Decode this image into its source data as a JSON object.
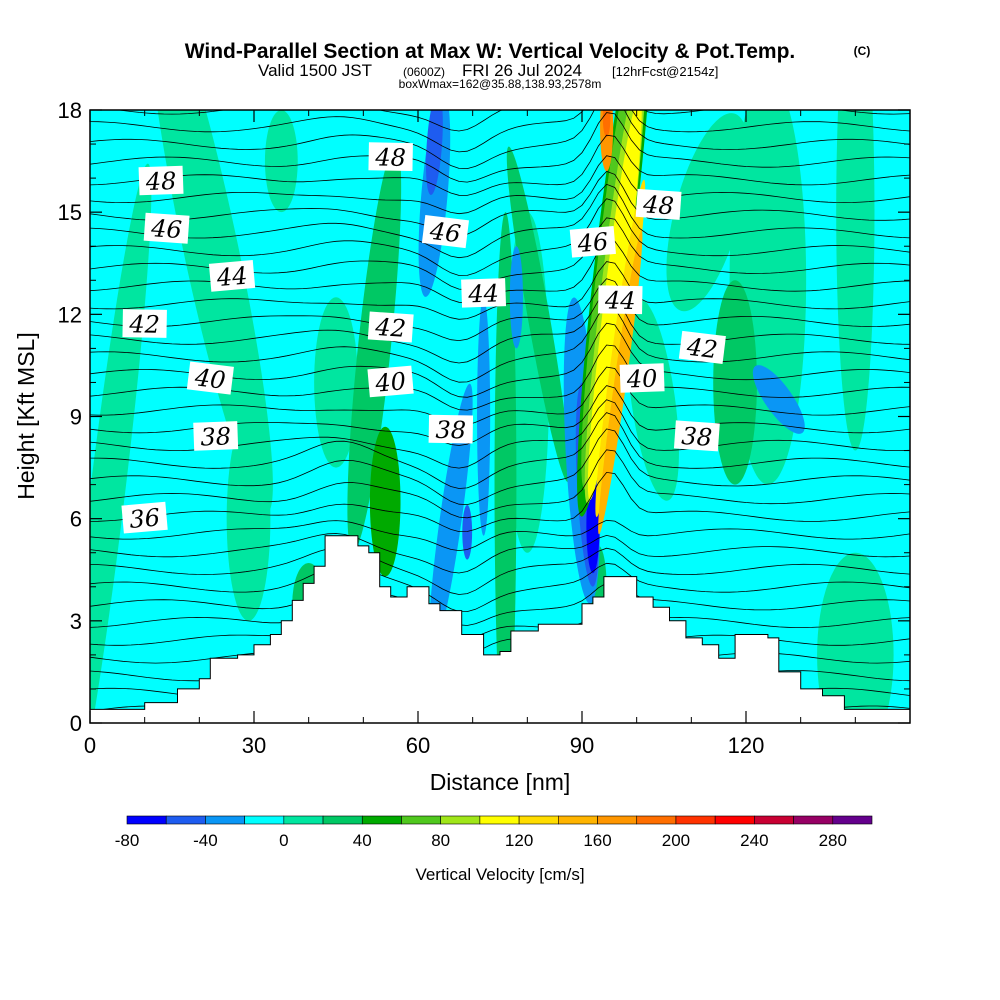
{
  "title": {
    "main": "Wind-Parallel Section at Max W: Vertical Velocity & Pot.Temp.",
    "copyright": "(C)",
    "valid_prefix": "Valid 1500 JST",
    "utc": "(0600Z)",
    "valid_date": "FRI 26 Jul 2024",
    "fcst": "[12hrFcst@2154z]",
    "box": "boxWmax=162@35.88,138.93,2578m"
  },
  "chart_data": {
    "type": "heatmap",
    "xlabel": "Distance [nm]",
    "ylabel": "Height [Kft MSL]",
    "xlim": [
      0,
      150
    ],
    "ylim": [
      0,
      18
    ],
    "x_ticks": [
      0,
      30,
      60,
      90,
      120
    ],
    "y_ticks": [
      0,
      3,
      6,
      9,
      12,
      15,
      18
    ],
    "colorbar": {
      "label": "Vertical Velocity [cm/s]",
      "ticks": [
        -80,
        -40,
        0,
        40,
        80,
        120,
        160,
        200,
        240,
        280
      ],
      "levels": [
        -80,
        -60,
        -40,
        -20,
        0,
        20,
        40,
        60,
        80,
        100,
        120,
        140,
        160,
        180,
        200,
        220,
        240,
        260,
        280,
        300
      ],
      "colors": [
        "#0000ff",
        "#1e5cf0",
        "#0a96f5",
        "#00ffff",
        "#00e6a0",
        "#00c864",
        "#00aa00",
        "#50c81e",
        "#a0e619",
        "#ffff00",
        "#ffdc00",
        "#ffb400",
        "#ff9600",
        "#ff6e00",
        "#ff3200",
        "#ff0000",
        "#c80032",
        "#960064",
        "#64008c"
      ]
    },
    "theta_contour_labels": [
      {
        "value": "36",
        "x": 10,
        "y": 6.0
      },
      {
        "value": "38",
        "x": 23,
        "y": 8.4
      },
      {
        "value": "38",
        "x": 66,
        "y": 8.6
      },
      {
        "value": "38",
        "x": 111,
        "y": 8.4
      },
      {
        "value": "40",
        "x": 22,
        "y": 10.1
      },
      {
        "value": "40",
        "x": 55,
        "y": 10.0
      },
      {
        "value": "40",
        "x": 101,
        "y": 10.1
      },
      {
        "value": "42",
        "x": 10,
        "y": 11.7
      },
      {
        "value": "42",
        "x": 55,
        "y": 11.6
      },
      {
        "value": "42",
        "x": 112,
        "y": 11.0
      },
      {
        "value": "44",
        "x": 26,
        "y": 13.1
      },
      {
        "value": "44",
        "x": 72,
        "y": 12.6
      },
      {
        "value": "44",
        "x": 97,
        "y": 12.4
      },
      {
        "value": "46",
        "x": 14,
        "y": 14.5
      },
      {
        "value": "46",
        "x": 65,
        "y": 14.4
      },
      {
        "value": "46",
        "x": 92,
        "y": 14.1
      },
      {
        "value": "48",
        "x": 13,
        "y": 15.9
      },
      {
        "value": "48",
        "x": 55,
        "y": 16.6
      },
      {
        "value": "48",
        "x": 104,
        "y": 15.2
      }
    ],
    "terrain_kft": [
      [
        0,
        0.4
      ],
      [
        10,
        0.6
      ],
      [
        16,
        1.0
      ],
      [
        20,
        1.3
      ],
      [
        22,
        1.9
      ],
      [
        27,
        2.0
      ],
      [
        30,
        2.3
      ],
      [
        33,
        2.6
      ],
      [
        35,
        3.0
      ],
      [
        37,
        3.6
      ],
      [
        39,
        4.1
      ],
      [
        41,
        4.6
      ],
      [
        43,
        5.5
      ],
      [
        47,
        5.5
      ],
      [
        49,
        5.2
      ],
      [
        51,
        5.0
      ],
      [
        53,
        4.0
      ],
      [
        55,
        3.7
      ],
      [
        58,
        4.0
      ],
      [
        62,
        3.5
      ],
      [
        64,
        3.3
      ],
      [
        68,
        2.6
      ],
      [
        72,
        2.0
      ],
      [
        75,
        2.1
      ],
      [
        77,
        2.7
      ],
      [
        82,
        2.9
      ],
      [
        88,
        2.9
      ],
      [
        90,
        3.5
      ],
      [
        92,
        3.7
      ],
      [
        94,
        4.3
      ],
      [
        100,
        3.7
      ],
      [
        103,
        3.4
      ],
      [
        106,
        3.0
      ],
      [
        109,
        2.5
      ],
      [
        112,
        2.3
      ],
      [
        115,
        1.9
      ],
      [
        118,
        2.6
      ],
      [
        124,
        2.5
      ],
      [
        126,
        1.5
      ],
      [
        130,
        1.0
      ],
      [
        134,
        0.8
      ],
      [
        138,
        0.4
      ],
      [
        150,
        0.1
      ]
    ],
    "max_w_column_x": 95
  }
}
